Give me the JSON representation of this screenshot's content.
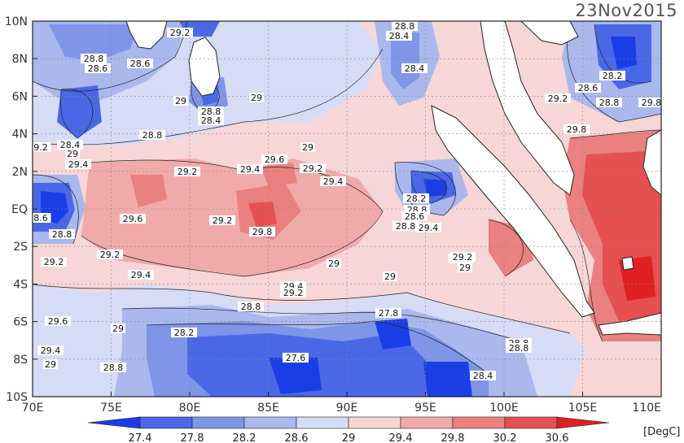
{
  "map": {
    "date": "23Nov2015",
    "unit": "[DegC]",
    "lon_labels": [
      "70E",
      "75E",
      "80E",
      "85E",
      "90E",
      "95E",
      "100E",
      "105E",
      "110E"
    ],
    "lat_labels": [
      "10N",
      "8N",
      "6N",
      "4N",
      "2N",
      "EQ",
      "2S",
      "4S",
      "6S",
      "8S",
      "10S"
    ],
    "colorbar_labels": [
      "27.4",
      "27.8",
      "28.2",
      "28.6",
      "29",
      "29.4",
      "29.8",
      "30.2",
      "30.6"
    ],
    "colorbar_colors": [
      "#1a3ee6",
      "#4a68e6",
      "#7f95e8",
      "#aab8ee",
      "#d6dcf6",
      "#f6d6d6",
      "#f0aaaa",
      "#ea8080",
      "#e65050",
      "#e02020"
    ],
    "contour_labels": [
      {
        "text": "28.8"
      },
      {
        "text": "28.6"
      },
      {
        "text": "28.6"
      },
      {
        "text": "29.2"
      },
      {
        "text": "28.8"
      },
      {
        "text": "28.4"
      },
      {
        "text": "29"
      },
      {
        "text": "29"
      },
      {
        "text": "28.8"
      },
      {
        "text": "28.4"
      },
      {
        "text": "28.8"
      },
      {
        "text": "9.2"
      },
      {
        "text": "28.4"
      },
      {
        "text": "29.4"
      },
      {
        "text": "29"
      },
      {
        "text": "29.2"
      },
      {
        "text": "29.4"
      },
      {
        "text": "29.6"
      },
      {
        "text": "29.2"
      },
      {
        "text": "29.4"
      },
      {
        "text": "29"
      },
      {
        "text": "8.6"
      },
      {
        "text": "28.8"
      },
      {
        "text": "29.6"
      },
      {
        "text": "29.2"
      },
      {
        "text": "29.8"
      },
      {
        "text": "29.2"
      },
      {
        "text": "29.2"
      },
      {
        "text": "29.4"
      },
      {
        "text": "29"
      },
      {
        "text": "29.4"
      },
      {
        "text": "29.2"
      },
      {
        "text": "29.6"
      },
      {
        "text": "29.2"
      },
      {
        "text": "29"
      },
      {
        "text": "29"
      },
      {
        "text": "28.8"
      },
      {
        "text": "29.6"
      },
      {
        "text": "29"
      },
      {
        "text": "28.2"
      },
      {
        "text": "27.8"
      },
      {
        "text": "29.4"
      },
      {
        "text": "29"
      },
      {
        "text": "28.8"
      },
      {
        "text": "27.6"
      },
      {
        "text": "28.4"
      },
      {
        "text": "28.8"
      },
      {
        "text": "28.2"
      },
      {
        "text": "28.6"
      },
      {
        "text": "29.2"
      },
      {
        "text": "28.8"
      },
      {
        "text": "29.8"
      },
      {
        "text": "29.8"
      },
      {
        "text": "28.2"
      },
      {
        "text": "28.4"
      },
      {
        "text": "28.8"
      },
      {
        "text": "28.6"
      },
      {
        "text": "28.8"
      },
      {
        "text": "29.2"
      },
      {
        "text": "29.4"
      },
      {
        "text": "28.8"
      }
    ]
  }
}
